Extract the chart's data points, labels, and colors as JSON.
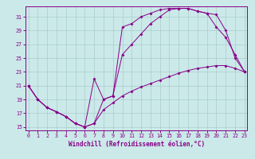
{
  "xlabel": "Windchill (Refroidissement éolien,°C)",
  "background_color": "#cbe9e9",
  "grid_color": "#aacccc",
  "line_color": "#880088",
  "xlim": [
    -0.3,
    23.3
  ],
  "ylim": [
    14.5,
    32.5
  ],
  "yticks": [
    15,
    17,
    19,
    21,
    23,
    25,
    27,
    29,
    31
  ],
  "xticks": [
    0,
    1,
    2,
    3,
    4,
    5,
    6,
    7,
    8,
    9,
    10,
    11,
    12,
    13,
    14,
    15,
    16,
    17,
    18,
    19,
    20,
    21,
    22,
    23
  ],
  "line1_x": [
    0,
    1,
    2,
    3,
    4,
    5,
    6,
    7,
    8,
    9,
    10,
    11,
    12,
    13,
    14,
    15,
    16,
    17,
    18,
    19,
    20,
    21,
    22,
    23
  ],
  "line1_y": [
    21,
    19,
    17.8,
    17.2,
    16.5,
    15.5,
    15.0,
    15.5,
    17.5,
    18.5,
    19.5,
    20.2,
    20.8,
    21.3,
    21.8,
    22.3,
    22.8,
    23.2,
    23.5,
    23.7,
    23.9,
    23.9,
    23.5,
    23.0
  ],
  "line2_x": [
    0,
    1,
    2,
    3,
    4,
    5,
    6,
    7,
    8,
    9,
    10,
    11,
    12,
    13,
    14,
    15,
    16,
    17,
    18,
    19,
    20,
    21,
    22,
    23
  ],
  "line2_y": [
    21,
    19,
    17.8,
    17.2,
    16.5,
    15.5,
    15.0,
    15.5,
    19.0,
    19.5,
    25.5,
    27.0,
    28.5,
    30.0,
    31.0,
    32.0,
    32.2,
    32.2,
    31.8,
    31.5,
    31.3,
    29.0,
    25.0,
    23.0
  ],
  "line3_x": [
    0,
    1,
    2,
    3,
    4,
    5,
    6,
    7,
    8,
    9,
    10,
    11,
    12,
    13,
    14,
    15,
    16,
    17,
    18,
    19,
    20,
    21,
    22,
    23
  ],
  "line3_y": [
    21,
    19,
    17.8,
    17.2,
    16.5,
    15.5,
    15.0,
    22.0,
    19.0,
    19.5,
    29.5,
    30.0,
    31.0,
    31.5,
    32.0,
    32.2,
    32.2,
    32.2,
    31.8,
    31.5,
    29.5,
    28.0,
    25.5,
    23.0
  ]
}
